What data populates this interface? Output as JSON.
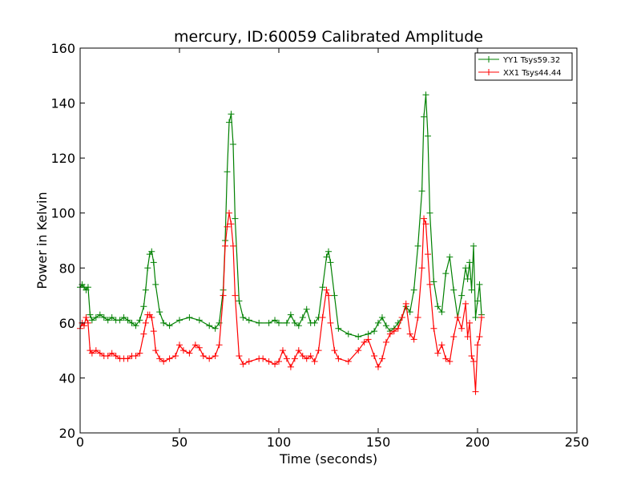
{
  "chart_data": {
    "type": "line",
    "title": "mercury, ID:60059 Calibrated Amplitude",
    "xlabel": "Time (seconds)",
    "ylabel": "Power in Kelvin",
    "xlim": [
      0,
      250
    ],
    "ylim": [
      20,
      160
    ],
    "xticks": [
      "0",
      "50",
      "100",
      "150",
      "200",
      "250"
    ],
    "yticks": [
      "20",
      "40",
      "60",
      "80",
      "100",
      "120",
      "140",
      "160"
    ],
    "grid": false,
    "legend_position": "top-right",
    "marker": "plus",
    "series": [
      {
        "name": "YY1 Tsys59.32",
        "color": "#008000",
        "x": [
          0,
          1,
          2,
          3,
          4,
          5,
          6,
          8,
          10,
          12,
          14,
          16,
          18,
          20,
          22,
          24,
          26,
          28,
          30,
          32,
          33,
          34,
          35,
          36,
          37,
          38,
          40,
          42,
          45,
          50,
          55,
          60,
          65,
          68,
          70,
          72,
          73,
          74,
          75,
          76,
          77,
          78,
          80,
          82,
          85,
          90,
          95,
          98,
          100,
          104,
          106,
          108,
          110,
          112,
          114,
          116,
          118,
          120,
          122,
          124,
          125,
          126,
          128,
          130,
          135,
          140,
          145,
          148,
          150,
          152,
          154,
          156,
          158,
          160,
          162,
          164,
          166,
          168,
          170,
          172,
          173,
          174,
          175,
          176,
          178,
          180,
          182,
          184,
          186,
          188,
          190,
          192,
          194,
          195,
          196,
          197,
          198,
          199,
          200,
          201,
          202
        ],
        "y": [
          73,
          74,
          73,
          72,
          73,
          63,
          61,
          62,
          63,
          62,
          61,
          62,
          61,
          61,
          62,
          61,
          60,
          59,
          61,
          66,
          72,
          80,
          85,
          86,
          82,
          74,
          64,
          60,
          59,
          61,
          62,
          61,
          59,
          58,
          60,
          72,
          90,
          115,
          133,
          136,
          125,
          98,
          68,
          62,
          61,
          60,
          60,
          61,
          60,
          60,
          63,
          60,
          59,
          62,
          65,
          60,
          60,
          62,
          73,
          84,
          86,
          82,
          70,
          58,
          56,
          55,
          56,
          57,
          60,
          62,
          59,
          57,
          58,
          60,
          62,
          66,
          64,
          72,
          88,
          108,
          135,
          143,
          128,
          100,
          75,
          66,
          64,
          78,
          84,
          72,
          62,
          70,
          80,
          76,
          82,
          72,
          88,
          62,
          68,
          74,
          63
        ]
      },
      {
        "name": "XX1 Tsys44.44",
        "color": "#ff0000",
        "x": [
          0,
          1,
          2,
          3,
          4,
          5,
          6,
          8,
          10,
          12,
          14,
          16,
          18,
          20,
          22,
          24,
          26,
          28,
          30,
          32,
          33,
          34,
          35,
          36,
          37,
          38,
          40,
          42,
          45,
          48,
          50,
          52,
          55,
          58,
          60,
          62,
          65,
          68,
          70,
          72,
          73,
          74,
          75,
          76,
          77,
          78,
          80,
          82,
          85,
          90,
          92,
          95,
          98,
          100,
          102,
          104,
          106,
          108,
          110,
          112,
          114,
          116,
          118,
          120,
          122,
          124,
          125,
          126,
          128,
          130,
          135,
          140,
          143,
          145,
          148,
          150,
          152,
          154,
          156,
          158,
          160,
          162,
          164,
          166,
          168,
          170,
          172,
          173,
          174,
          175,
          176,
          178,
          180,
          182,
          184,
          186,
          188,
          190,
          192,
          194,
          195,
          196,
          197,
          198,
          199,
          200,
          201,
          202
        ],
        "y": [
          58,
          60,
          59,
          62,
          60,
          50,
          49,
          50,
          49,
          48,
          48,
          49,
          48,
          47,
          47,
          47,
          48,
          48,
          49,
          56,
          60,
          63,
          63,
          62,
          57,
          50,
          47,
          46,
          47,
          48,
          52,
          50,
          49,
          52,
          51,
          48,
          47,
          48,
          52,
          70,
          88,
          95,
          100,
          96,
          88,
          70,
          48,
          45,
          46,
          47,
          47,
          46,
          45,
          46,
          50,
          47,
          44,
          47,
          50,
          48,
          47,
          48,
          46,
          50,
          62,
          72,
          70,
          60,
          50,
          47,
          46,
          50,
          53,
          54,
          48,
          44,
          47,
          53,
          56,
          57,
          58,
          62,
          67,
          56,
          54,
          62,
          80,
          98,
          96,
          85,
          74,
          58,
          49,
          52,
          47,
          46,
          55,
          62,
          58,
          67,
          55,
          60,
          48,
          46,
          35,
          52,
          55,
          62
        ]
      }
    ]
  }
}
